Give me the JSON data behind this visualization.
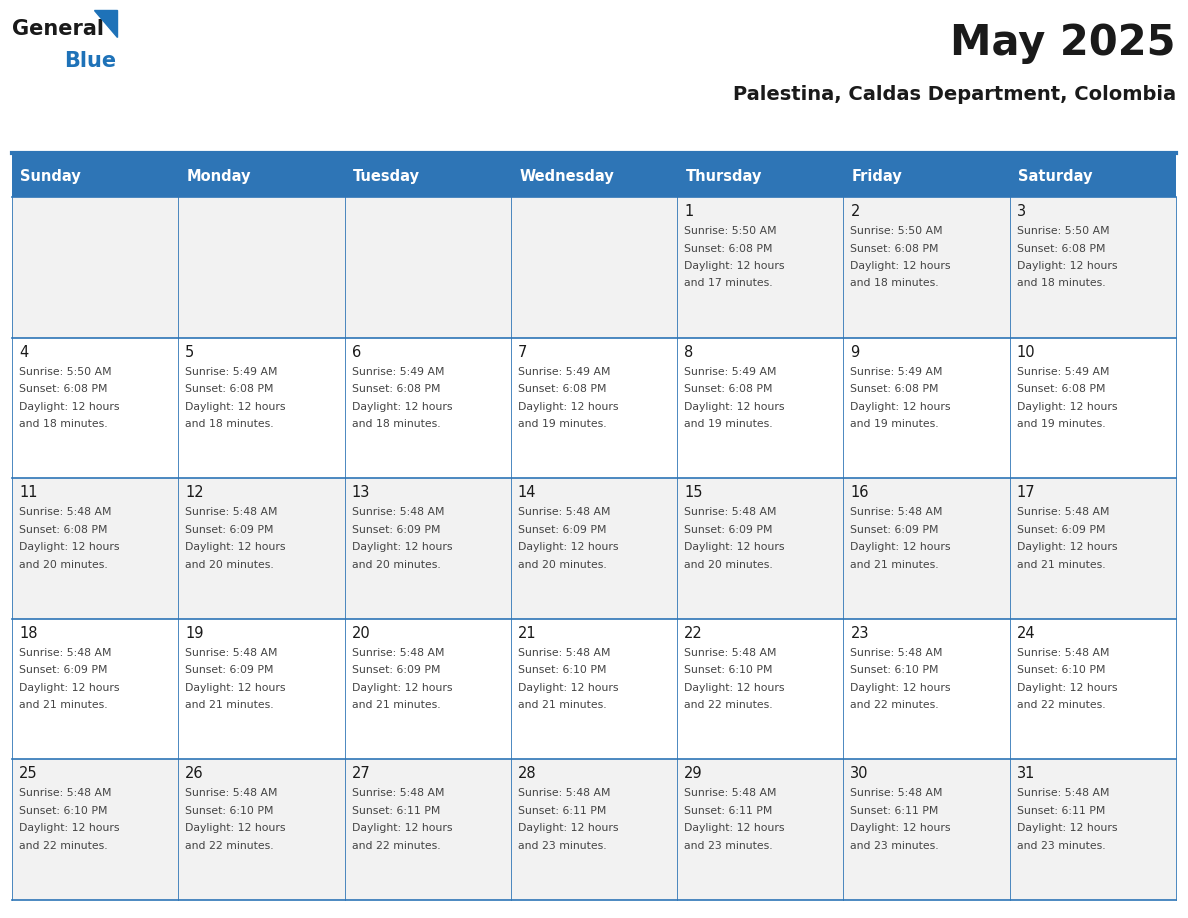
{
  "title": "May 2025",
  "subtitle": "Palestina, Caldas Department, Colombia",
  "header_bg_color": "#2e75b6",
  "header_text_color": "#ffffff",
  "cell_bg_even": "#f2f2f2",
  "cell_bg_odd": "#ffffff",
  "day_number_color": "#1a1a1a",
  "cell_text_color": "#444444",
  "grid_line_color": "#2e75b6",
  "title_color": "#1a1a1a",
  "subtitle_color": "#1a1a1a",
  "days_of_week": [
    "Sunday",
    "Monday",
    "Tuesday",
    "Wednesday",
    "Thursday",
    "Friday",
    "Saturday"
  ],
  "logo_text1": "General",
  "logo_text2": "Blue",
  "logo_color1": "#1a1a1a",
  "logo_color2": "#1e72b8",
  "calendar_data": [
    [
      {
        "day": 0,
        "sunrise": "",
        "sunset": "",
        "daylight": ""
      },
      {
        "day": 0,
        "sunrise": "",
        "sunset": "",
        "daylight": ""
      },
      {
        "day": 0,
        "sunrise": "",
        "sunset": "",
        "daylight": ""
      },
      {
        "day": 0,
        "sunrise": "",
        "sunset": "",
        "daylight": ""
      },
      {
        "day": 1,
        "sunrise": "5:50 AM",
        "sunset": "6:08 PM",
        "daylight": "12 hours and 17 minutes."
      },
      {
        "day": 2,
        "sunrise": "5:50 AM",
        "sunset": "6:08 PM",
        "daylight": "12 hours and 18 minutes."
      },
      {
        "day": 3,
        "sunrise": "5:50 AM",
        "sunset": "6:08 PM",
        "daylight": "12 hours and 18 minutes."
      }
    ],
    [
      {
        "day": 4,
        "sunrise": "5:50 AM",
        "sunset": "6:08 PM",
        "daylight": "12 hours and 18 minutes."
      },
      {
        "day": 5,
        "sunrise": "5:49 AM",
        "sunset": "6:08 PM",
        "daylight": "12 hours and 18 minutes."
      },
      {
        "day": 6,
        "sunrise": "5:49 AM",
        "sunset": "6:08 PM",
        "daylight": "12 hours and 18 minutes."
      },
      {
        "day": 7,
        "sunrise": "5:49 AM",
        "sunset": "6:08 PM",
        "daylight": "12 hours and 19 minutes."
      },
      {
        "day": 8,
        "sunrise": "5:49 AM",
        "sunset": "6:08 PM",
        "daylight": "12 hours and 19 minutes."
      },
      {
        "day": 9,
        "sunrise": "5:49 AM",
        "sunset": "6:08 PM",
        "daylight": "12 hours and 19 minutes."
      },
      {
        "day": 10,
        "sunrise": "5:49 AM",
        "sunset": "6:08 PM",
        "daylight": "12 hours and 19 minutes."
      }
    ],
    [
      {
        "day": 11,
        "sunrise": "5:48 AM",
        "sunset": "6:08 PM",
        "daylight": "12 hours and 20 minutes."
      },
      {
        "day": 12,
        "sunrise": "5:48 AM",
        "sunset": "6:09 PM",
        "daylight": "12 hours and 20 minutes."
      },
      {
        "day": 13,
        "sunrise": "5:48 AM",
        "sunset": "6:09 PM",
        "daylight": "12 hours and 20 minutes."
      },
      {
        "day": 14,
        "sunrise": "5:48 AM",
        "sunset": "6:09 PM",
        "daylight": "12 hours and 20 minutes."
      },
      {
        "day": 15,
        "sunrise": "5:48 AM",
        "sunset": "6:09 PM",
        "daylight": "12 hours and 20 minutes."
      },
      {
        "day": 16,
        "sunrise": "5:48 AM",
        "sunset": "6:09 PM",
        "daylight": "12 hours and 21 minutes."
      },
      {
        "day": 17,
        "sunrise": "5:48 AM",
        "sunset": "6:09 PM",
        "daylight": "12 hours and 21 minutes."
      }
    ],
    [
      {
        "day": 18,
        "sunrise": "5:48 AM",
        "sunset": "6:09 PM",
        "daylight": "12 hours and 21 minutes."
      },
      {
        "day": 19,
        "sunrise": "5:48 AM",
        "sunset": "6:09 PM",
        "daylight": "12 hours and 21 minutes."
      },
      {
        "day": 20,
        "sunrise": "5:48 AM",
        "sunset": "6:09 PM",
        "daylight": "12 hours and 21 minutes."
      },
      {
        "day": 21,
        "sunrise": "5:48 AM",
        "sunset": "6:10 PM",
        "daylight": "12 hours and 21 minutes."
      },
      {
        "day": 22,
        "sunrise": "5:48 AM",
        "sunset": "6:10 PM",
        "daylight": "12 hours and 22 minutes."
      },
      {
        "day": 23,
        "sunrise": "5:48 AM",
        "sunset": "6:10 PM",
        "daylight": "12 hours and 22 minutes."
      },
      {
        "day": 24,
        "sunrise": "5:48 AM",
        "sunset": "6:10 PM",
        "daylight": "12 hours and 22 minutes."
      }
    ],
    [
      {
        "day": 25,
        "sunrise": "5:48 AM",
        "sunset": "6:10 PM",
        "daylight": "12 hours and 22 minutes."
      },
      {
        "day": 26,
        "sunrise": "5:48 AM",
        "sunset": "6:10 PM",
        "daylight": "12 hours and 22 minutes."
      },
      {
        "day": 27,
        "sunrise": "5:48 AM",
        "sunset": "6:11 PM",
        "daylight": "12 hours and 22 minutes."
      },
      {
        "day": 28,
        "sunrise": "5:48 AM",
        "sunset": "6:11 PM",
        "daylight": "12 hours and 23 minutes."
      },
      {
        "day": 29,
        "sunrise": "5:48 AM",
        "sunset": "6:11 PM",
        "daylight": "12 hours and 23 minutes."
      },
      {
        "day": 30,
        "sunrise": "5:48 AM",
        "sunset": "6:11 PM",
        "daylight": "12 hours and 23 minutes."
      },
      {
        "day": 31,
        "sunrise": "5:48 AM",
        "sunset": "6:11 PM",
        "daylight": "12 hours and 23 minutes."
      }
    ]
  ]
}
